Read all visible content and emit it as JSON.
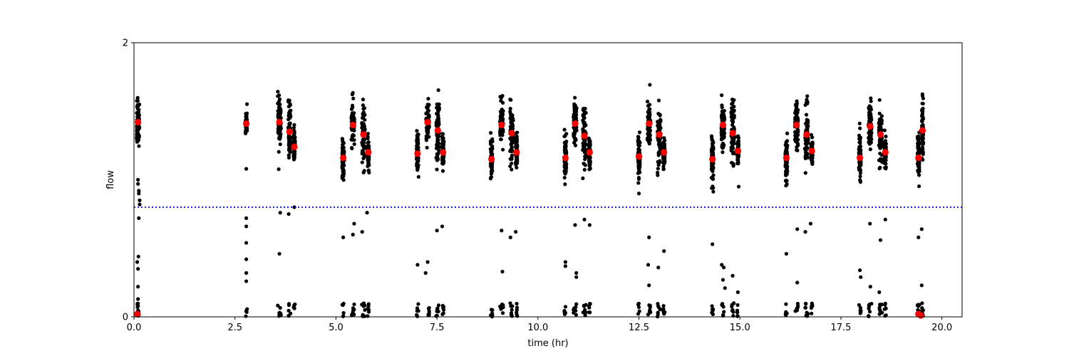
{
  "chart_data": {
    "type": "scatter",
    "xlabel": "time (hr)",
    "ylabel": "flow",
    "xlim": [
      0.0,
      20.5
    ],
    "ylim": [
      0,
      2
    ],
    "x_ticks": [
      0.0,
      2.5,
      5.0,
      7.5,
      10.0,
      12.5,
      15.0,
      17.5,
      20.0
    ],
    "x_tick_labels": [
      "0.0",
      "2.5",
      "5.0",
      "7.5",
      "10.0",
      "12.5",
      "15.0",
      "17.5",
      "20.0"
    ],
    "y_ticks": [
      0,
      2
    ],
    "y_tick_labels": [
      "0",
      "2"
    ],
    "grid": false,
    "threshold": {
      "y": 0.8,
      "color": "#0000ff",
      "style": "dotted"
    },
    "colors": {
      "points": "#000000",
      "medians": "#ff0000"
    },
    "clusters": [
      {
        "t": 0.1,
        "dt": 0.035,
        "y": 1.42,
        "sd": 0.09
      },
      {
        "t": 2.78,
        "dt": 0.02,
        "y": 1.41,
        "sd": 0.04
      },
      {
        "t": 3.6,
        "dt": 0.04,
        "y": 1.43,
        "sd": 0.09
      },
      {
        "t": 3.85,
        "dt": 0.03,
        "y": 1.35,
        "sd": 0.1
      },
      {
        "t": 3.97,
        "dt": 0.02,
        "y": 1.24,
        "sd": 0.06
      },
      {
        "t": 5.18,
        "dt": 0.025,
        "y": 1.16,
        "sd": 0.07
      },
      {
        "t": 5.42,
        "dt": 0.04,
        "y": 1.41,
        "sd": 0.08
      },
      {
        "t": 5.68,
        "dt": 0.04,
        "y": 1.34,
        "sd": 0.12
      },
      {
        "t": 5.8,
        "dt": 0.02,
        "y": 1.2,
        "sd": 0.05
      },
      {
        "t": 7.02,
        "dt": 0.025,
        "y": 1.19,
        "sd": 0.08
      },
      {
        "t": 7.27,
        "dt": 0.04,
        "y": 1.42,
        "sd": 0.08
      },
      {
        "t": 7.52,
        "dt": 0.04,
        "y": 1.36,
        "sd": 0.12
      },
      {
        "t": 7.65,
        "dt": 0.02,
        "y": 1.2,
        "sd": 0.06
      },
      {
        "t": 8.85,
        "dt": 0.025,
        "y": 1.15,
        "sd": 0.08
      },
      {
        "t": 9.1,
        "dt": 0.04,
        "y": 1.41,
        "sd": 0.08
      },
      {
        "t": 9.35,
        "dt": 0.04,
        "y": 1.34,
        "sd": 0.12
      },
      {
        "t": 9.47,
        "dt": 0.02,
        "y": 1.2,
        "sd": 0.05
      },
      {
        "t": 10.68,
        "dt": 0.025,
        "y": 1.16,
        "sd": 0.08
      },
      {
        "t": 10.92,
        "dt": 0.04,
        "y": 1.41,
        "sd": 0.08
      },
      {
        "t": 11.15,
        "dt": 0.04,
        "y": 1.33,
        "sd": 0.12
      },
      {
        "t": 11.28,
        "dt": 0.02,
        "y": 1.2,
        "sd": 0.05
      },
      {
        "t": 12.5,
        "dt": 0.025,
        "y": 1.17,
        "sd": 0.08
      },
      {
        "t": 12.75,
        "dt": 0.04,
        "y": 1.41,
        "sd": 0.08
      },
      {
        "t": 13.0,
        "dt": 0.04,
        "y": 1.33,
        "sd": 0.12
      },
      {
        "t": 13.12,
        "dt": 0.02,
        "y": 1.2,
        "sd": 0.05
      },
      {
        "t": 14.32,
        "dt": 0.025,
        "y": 1.15,
        "sd": 0.08
      },
      {
        "t": 14.58,
        "dt": 0.04,
        "y": 1.41,
        "sd": 0.08
      },
      {
        "t": 14.82,
        "dt": 0.04,
        "y": 1.34,
        "sd": 0.12
      },
      {
        "t": 14.95,
        "dt": 0.02,
        "y": 1.21,
        "sd": 0.05
      },
      {
        "t": 16.15,
        "dt": 0.025,
        "y": 1.16,
        "sd": 0.08
      },
      {
        "t": 16.4,
        "dt": 0.04,
        "y": 1.4,
        "sd": 0.08
      },
      {
        "t": 16.65,
        "dt": 0.04,
        "y": 1.33,
        "sd": 0.12
      },
      {
        "t": 16.78,
        "dt": 0.02,
        "y": 1.21,
        "sd": 0.05
      },
      {
        "t": 17.97,
        "dt": 0.025,
        "y": 1.16,
        "sd": 0.08
      },
      {
        "t": 18.22,
        "dt": 0.04,
        "y": 1.4,
        "sd": 0.08
      },
      {
        "t": 18.48,
        "dt": 0.04,
        "y": 1.33,
        "sd": 0.12
      },
      {
        "t": 18.6,
        "dt": 0.02,
        "y": 1.2,
        "sd": 0.05
      },
      {
        "t": 19.42,
        "dt": 0.025,
        "y": 1.16,
        "sd": 0.08
      },
      {
        "t": 19.52,
        "dt": 0.02,
        "y": 1.36,
        "sd": 0.1
      }
    ],
    "low_clusters": [
      {
        "t": 0.1,
        "dt": 0.03,
        "n": 14
      },
      {
        "t": 2.78,
        "dt": 0.02,
        "n": 4
      },
      {
        "t": 3.6,
        "dt": 0.04,
        "n": 8
      },
      {
        "t": 3.85,
        "dt": 0.03,
        "n": 6
      },
      {
        "t": 3.97,
        "dt": 0.02,
        "n": 5
      },
      {
        "t": 5.18,
        "dt": 0.025,
        "n": 6
      },
      {
        "t": 5.42,
        "dt": 0.04,
        "n": 8
      },
      {
        "t": 5.68,
        "dt": 0.04,
        "n": 8
      },
      {
        "t": 5.8,
        "dt": 0.02,
        "n": 6
      },
      {
        "t": 7.02,
        "dt": 0.025,
        "n": 6
      },
      {
        "t": 7.27,
        "dt": 0.04,
        "n": 8
      },
      {
        "t": 7.52,
        "dt": 0.04,
        "n": 8
      },
      {
        "t": 7.65,
        "dt": 0.02,
        "n": 6
      },
      {
        "t": 8.85,
        "dt": 0.025,
        "n": 6
      },
      {
        "t": 9.1,
        "dt": 0.04,
        "n": 8
      },
      {
        "t": 9.35,
        "dt": 0.04,
        "n": 8
      },
      {
        "t": 9.47,
        "dt": 0.02,
        "n": 6
      },
      {
        "t": 10.68,
        "dt": 0.025,
        "n": 6
      },
      {
        "t": 10.92,
        "dt": 0.04,
        "n": 8
      },
      {
        "t": 11.15,
        "dt": 0.04,
        "n": 8
      },
      {
        "t": 11.28,
        "dt": 0.02,
        "n": 6
      },
      {
        "t": 12.5,
        "dt": 0.025,
        "n": 6
      },
      {
        "t": 12.75,
        "dt": 0.04,
        "n": 8
      },
      {
        "t": 13.0,
        "dt": 0.04,
        "n": 8
      },
      {
        "t": 13.12,
        "dt": 0.02,
        "n": 6
      },
      {
        "t": 14.32,
        "dt": 0.025,
        "n": 6
      },
      {
        "t": 14.58,
        "dt": 0.04,
        "n": 8
      },
      {
        "t": 14.82,
        "dt": 0.04,
        "n": 8
      },
      {
        "t": 14.95,
        "dt": 0.02,
        "n": 6
      },
      {
        "t": 16.15,
        "dt": 0.025,
        "n": 6
      },
      {
        "t": 16.4,
        "dt": 0.04,
        "n": 8
      },
      {
        "t": 16.65,
        "dt": 0.04,
        "n": 8
      },
      {
        "t": 16.78,
        "dt": 0.02,
        "n": 6
      },
      {
        "t": 17.97,
        "dt": 0.025,
        "n": 6
      },
      {
        "t": 18.22,
        "dt": 0.04,
        "n": 8
      },
      {
        "t": 18.48,
        "dt": 0.04,
        "n": 8
      },
      {
        "t": 18.6,
        "dt": 0.02,
        "n": 6
      },
      {
        "t": 19.42,
        "dt": 0.025,
        "n": 8
      },
      {
        "t": 19.52,
        "dt": 0.02,
        "n": 6
      }
    ],
    "outliers": [
      [
        0.1,
        0.97
      ],
      [
        0.12,
        0.9
      ],
      [
        0.14,
        0.85
      ],
      [
        0.12,
        0.72
      ],
      [
        0.11,
        0.44
      ],
      [
        0.1,
        0.35
      ],
      [
        0.1,
        0.22
      ],
      [
        0.08,
        0.4
      ],
      [
        0.1,
        0.13
      ],
      [
        0.12,
        0.92
      ],
      [
        0.14,
        0.82
      ],
      [
        0.1,
        1.0
      ],
      [
        2.78,
        1.08
      ],
      [
        2.78,
        0.72
      ],
      [
        2.78,
        0.66
      ],
      [
        2.78,
        0.54
      ],
      [
        2.78,
        0.42
      ],
      [
        2.78,
        0.32
      ],
      [
        2.78,
        0.26
      ],
      [
        3.6,
        0.46
      ],
      [
        3.62,
        0.76
      ],
      [
        3.83,
        0.75
      ],
      [
        3.97,
        0.8
      ],
      [
        5.18,
        0.58
      ],
      [
        5.42,
        0.6
      ],
      [
        5.45,
        0.68
      ],
      [
        5.65,
        0.62
      ],
      [
        5.77,
        0.76
      ],
      [
        7.02,
        0.38
      ],
      [
        7.22,
        0.32
      ],
      [
        7.27,
        0.4
      ],
      [
        7.5,
        0.63
      ],
      [
        7.63,
        0.66
      ],
      [
        9.1,
        0.63
      ],
      [
        9.12,
        0.33
      ],
      [
        9.32,
        0.58
      ],
      [
        9.45,
        0.62
      ],
      [
        10.68,
        0.4
      ],
      [
        10.68,
        0.37
      ],
      [
        10.92,
        0.67
      ],
      [
        10.95,
        0.32
      ],
      [
        10.95,
        0.29
      ],
      [
        11.15,
        0.71
      ],
      [
        11.28,
        0.67
      ],
      [
        12.5,
        0.9
      ],
      [
        12.75,
        0.58
      ],
      [
        12.73,
        0.38
      ],
      [
        12.75,
        0.23
      ],
      [
        12.98,
        0.36
      ],
      [
        13.12,
        0.48
      ],
      [
        14.32,
        0.53
      ],
      [
        14.55,
        0.38
      ],
      [
        14.6,
        0.36
      ],
      [
        14.58,
        0.27
      ],
      [
        14.63,
        0.21
      ],
      [
        14.82,
        0.3
      ],
      [
        14.95,
        0.18
      ],
      [
        14.97,
        0.95
      ],
      [
        16.15,
        0.46
      ],
      [
        16.42,
        0.64
      ],
      [
        16.42,
        0.25
      ],
      [
        16.62,
        0.62
      ],
      [
        16.75,
        0.68
      ],
      [
        17.97,
        0.34
      ],
      [
        17.99,
        0.29
      ],
      [
        18.22,
        0.68
      ],
      [
        18.23,
        0.22
      ],
      [
        18.48,
        0.56
      ],
      [
        18.6,
        0.71
      ],
      [
        18.45,
        0.18
      ],
      [
        19.42,
        0.58
      ],
      [
        19.5,
        0.64
      ],
      [
        19.5,
        0.23
      ]
    ],
    "medians": [
      [
        0.1,
        1.42
      ],
      [
        2.78,
        1.41
      ],
      [
        3.6,
        1.42
      ],
      [
        3.85,
        1.35
      ],
      [
        3.97,
        1.24
      ],
      [
        5.18,
        1.16
      ],
      [
        5.42,
        1.4
      ],
      [
        5.68,
        1.33
      ],
      [
        5.8,
        1.2
      ],
      [
        7.02,
        1.19
      ],
      [
        7.27,
        1.42
      ],
      [
        7.52,
        1.36
      ],
      [
        7.65,
        1.2
      ],
      [
        8.85,
        1.15
      ],
      [
        9.1,
        1.4
      ],
      [
        9.35,
        1.34
      ],
      [
        9.47,
        1.2
      ],
      [
        10.68,
        1.16
      ],
      [
        10.92,
        1.41
      ],
      [
        11.15,
        1.32
      ],
      [
        11.28,
        1.2
      ],
      [
        12.5,
        1.17
      ],
      [
        12.75,
        1.41
      ],
      [
        13.0,
        1.33
      ],
      [
        13.12,
        1.2
      ],
      [
        14.32,
        1.15
      ],
      [
        14.58,
        1.4
      ],
      [
        14.82,
        1.34
      ],
      [
        14.95,
        1.21
      ],
      [
        16.15,
        1.16
      ],
      [
        16.4,
        1.4
      ],
      [
        16.65,
        1.33
      ],
      [
        16.78,
        1.21
      ],
      [
        17.97,
        1.16
      ],
      [
        18.22,
        1.39
      ],
      [
        18.48,
        1.33
      ],
      [
        18.6,
        1.2
      ],
      [
        19.42,
        1.16
      ],
      [
        19.52,
        1.36
      ],
      [
        0.08,
        0.02
      ],
      [
        19.42,
        0.02
      ],
      [
        19.48,
        0.01
      ]
    ]
  }
}
